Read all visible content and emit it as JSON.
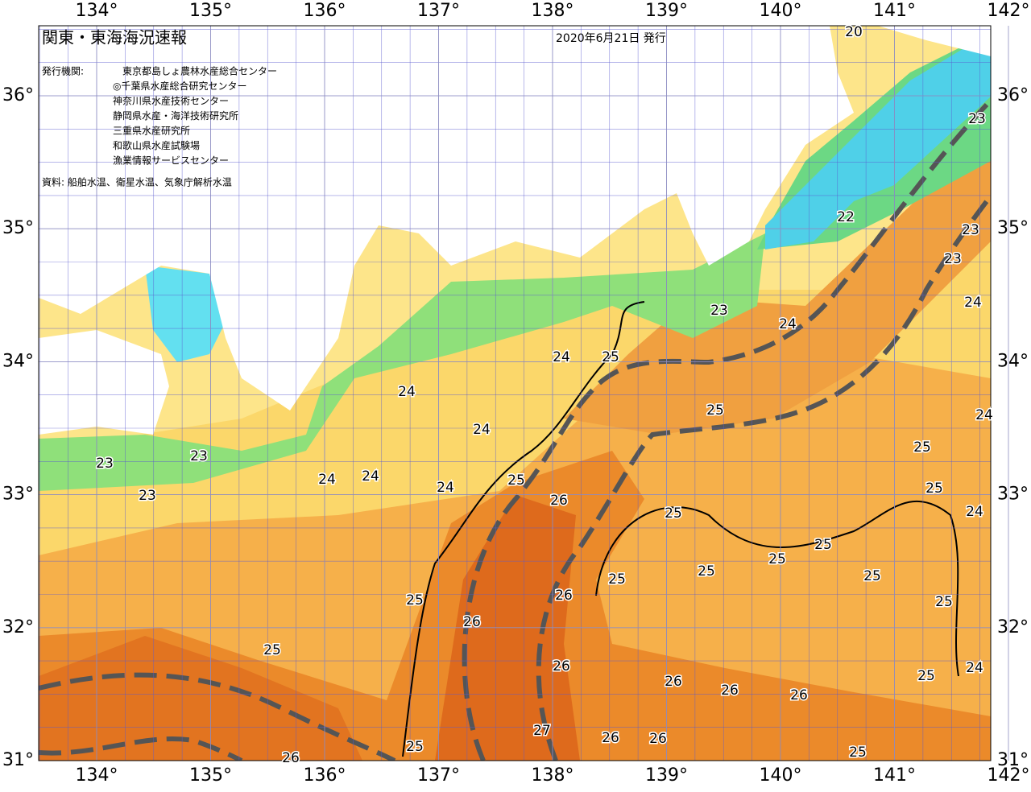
{
  "header": {
    "title": "関東・東海海況速報",
    "date": "2020年6月21日 発行"
  },
  "issuers": {
    "label": "発行機関:",
    "items": [
      "東京都島しょ農林水産総合センター",
      "◎千葉県水産総合研究センター",
      "神奈川県水産技術センター",
      "静岡県水産・海洋技術研究所",
      "三重県水産研究所",
      "和歌山県水産試験場",
      "漁業情報サービスセンター"
    ]
  },
  "source": "資料: 船舶水温、衛星水温、気象庁解析水温",
  "lon_ticks": [
    {
      "value": 134,
      "label": "134°"
    },
    {
      "value": 135,
      "label": "135°"
    },
    {
      "value": 136,
      "label": "136°"
    },
    {
      "value": 137,
      "label": "137°"
    },
    {
      "value": 138,
      "label": "138°"
    },
    {
      "value": 139,
      "label": "139°"
    },
    {
      "value": 140,
      "label": "140°"
    },
    {
      "value": 141,
      "label": "141°"
    },
    {
      "value": 142,
      "label": "142°"
    }
  ],
  "lat_ticks": [
    {
      "value": 31,
      "label": "31°"
    },
    {
      "value": 32,
      "label": "32°"
    },
    {
      "value": 33,
      "label": "33°"
    },
    {
      "value": 34,
      "label": "34°"
    },
    {
      "value": 35,
      "label": "35°"
    },
    {
      "value": 36,
      "label": "36°"
    }
  ],
  "contour_labels": [
    20,
    23,
    22,
    23,
    23,
    24,
    23,
    24,
    24,
    25,
    24,
    25,
    24,
    24,
    25,
    23,
    23,
    25,
    24,
    24,
    24,
    25,
    23,
    26,
    25,
    24,
    25,
    25,
    25,
    25,
    25,
    26,
    25,
    25,
    26,
    25,
    26,
    24,
    25,
    26,
    26,
    26,
    27,
    26,
    26,
    25,
    25,
    26
  ]
}
